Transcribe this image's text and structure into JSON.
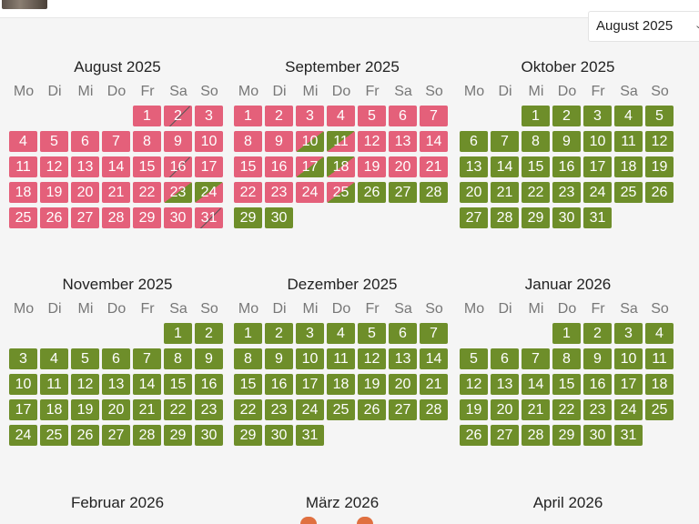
{
  "header": {
    "month_select": "August 2025"
  },
  "weekday_labels": [
    "Mo",
    "Di",
    "Mi",
    "Do",
    "Fr",
    "Sa",
    "So"
  ],
  "colors": {
    "booked": "#e4607a",
    "available": "#6e8e2a"
  },
  "months": [
    {
      "title": "August 2025",
      "offset": 4,
      "days": 31,
      "status": {
        "1": "r",
        "2": "r",
        "3": "r",
        "4": "r",
        "5": "r",
        "6": "r",
        "7": "r",
        "8": "r",
        "9": "r",
        "10": "r",
        "11": "r",
        "12": "r",
        "13": "r",
        "14": "r",
        "15": "r",
        "16": "r",
        "17": "r",
        "18": "r",
        "19": "r",
        "20": "r",
        "21": "r",
        "22": "r",
        "23": "rg",
        "24": "gr",
        "25": "r",
        "26": "r",
        "27": "r",
        "28": "r",
        "29": "r",
        "30": "r",
        "31": "r"
      },
      "slashed": [
        2,
        16,
        31
      ]
    },
    {
      "title": "September 2025",
      "offset": 0,
      "days": 30,
      "status": {
        "1": "r",
        "2": "r",
        "3": "r",
        "4": "r",
        "5": "r",
        "6": "r",
        "7": "r",
        "8": "r",
        "9": "r",
        "10": "rg",
        "11": "gr",
        "12": "r",
        "13": "r",
        "14": "r",
        "15": "r",
        "16": "r",
        "17": "rg",
        "18": "gr",
        "19": "r",
        "20": "r",
        "21": "r",
        "22": "r",
        "23": "r",
        "24": "r",
        "25": "rg",
        "26": "g",
        "27": "g",
        "28": "g",
        "29": "g",
        "30": "g"
      },
      "slashed": []
    },
    {
      "title": "Oktober 2025",
      "offset": 2,
      "days": 31,
      "status": {},
      "slashed": []
    },
    {
      "title": "November 2025",
      "offset": 5,
      "days": 30,
      "status": {},
      "slashed": []
    },
    {
      "title": "Dezember 2025",
      "offset": 0,
      "days": 31,
      "status": {},
      "slashed": []
    },
    {
      "title": "Januar 2026",
      "offset": 3,
      "days": 31,
      "status": {},
      "slashed": []
    },
    {
      "title": "Februar 2026",
      "offset": 6,
      "days": 0,
      "status": {},
      "slashed": []
    },
    {
      "title": "März 2026",
      "offset": 6,
      "days": 0,
      "status": {},
      "slashed": []
    },
    {
      "title": "April 2026",
      "offset": 2,
      "days": 0,
      "status": {},
      "slashed": []
    }
  ]
}
